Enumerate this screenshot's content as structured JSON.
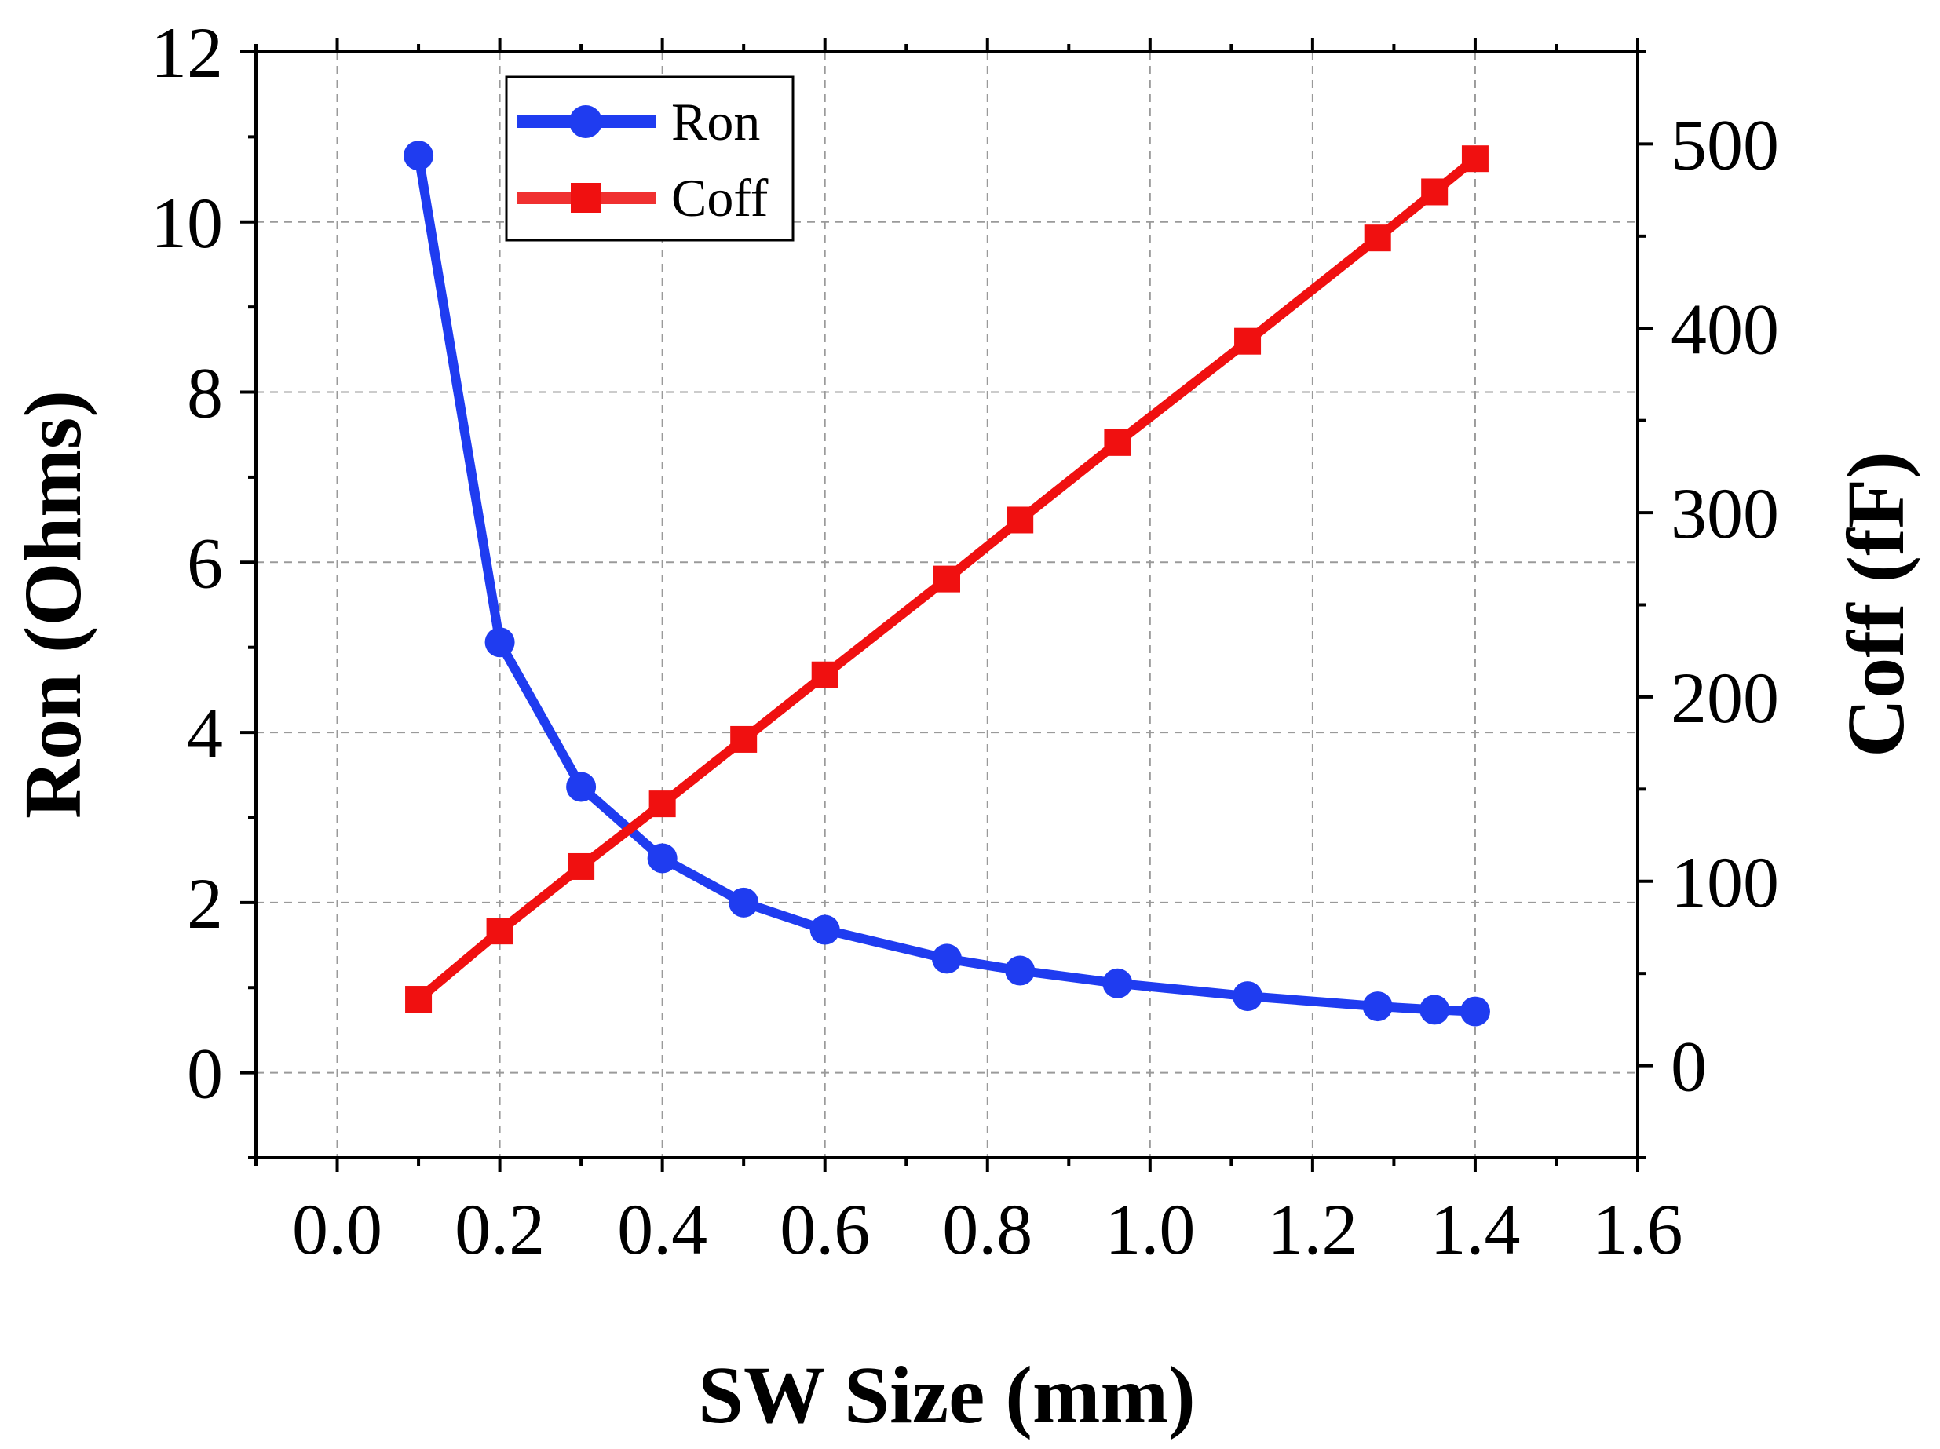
{
  "chart_data": {
    "type": "line",
    "title": "",
    "xlabel": "SW Size (mm)",
    "ylabel": "Ron (Ohms)",
    "y2label": "Coff (fF)",
    "xlim": [
      -0.1,
      1.6
    ],
    "ylim": [
      -1,
      12
    ],
    "y2lim": [
      -50,
      550
    ],
    "xticks": [
      "0.0",
      "0.2",
      "0.4",
      "0.6",
      "0.8",
      "1.0",
      "1.2",
      "1.4",
      "1.6"
    ],
    "yticks": [
      "0",
      "2",
      "4",
      "6",
      "8",
      "10",
      "12"
    ],
    "y2ticks": [
      "0",
      "100",
      "200",
      "300",
      "400",
      "500"
    ],
    "grid": true,
    "legend_position": "top-left",
    "series": [
      {
        "name": "Ron",
        "axis": "left",
        "color": "#1f3cf0",
        "marker": "circle",
        "x": [
          0.1,
          0.2,
          0.3,
          0.4,
          0.5,
          0.6,
          0.75,
          0.84,
          0.96,
          1.12,
          1.28,
          1.35,
          1.4
        ],
        "y": [
          10.78,
          5.06,
          3.36,
          2.52,
          2.0,
          1.68,
          1.34,
          1.2,
          1.05,
          0.9,
          0.78,
          0.74,
          0.72
        ]
      },
      {
        "name": "Coff",
        "axis": "right",
        "color": "#f01010",
        "marker": "square",
        "x": [
          0.1,
          0.2,
          0.3,
          0.4,
          0.5,
          0.6,
          0.75,
          0.84,
          0.96,
          1.12,
          1.28,
          1.35,
          1.4
        ],
        "y": [
          36,
          73,
          108,
          142,
          177,
          212,
          264,
          296,
          338,
          393,
          449,
          474,
          492
        ]
      }
    ]
  }
}
